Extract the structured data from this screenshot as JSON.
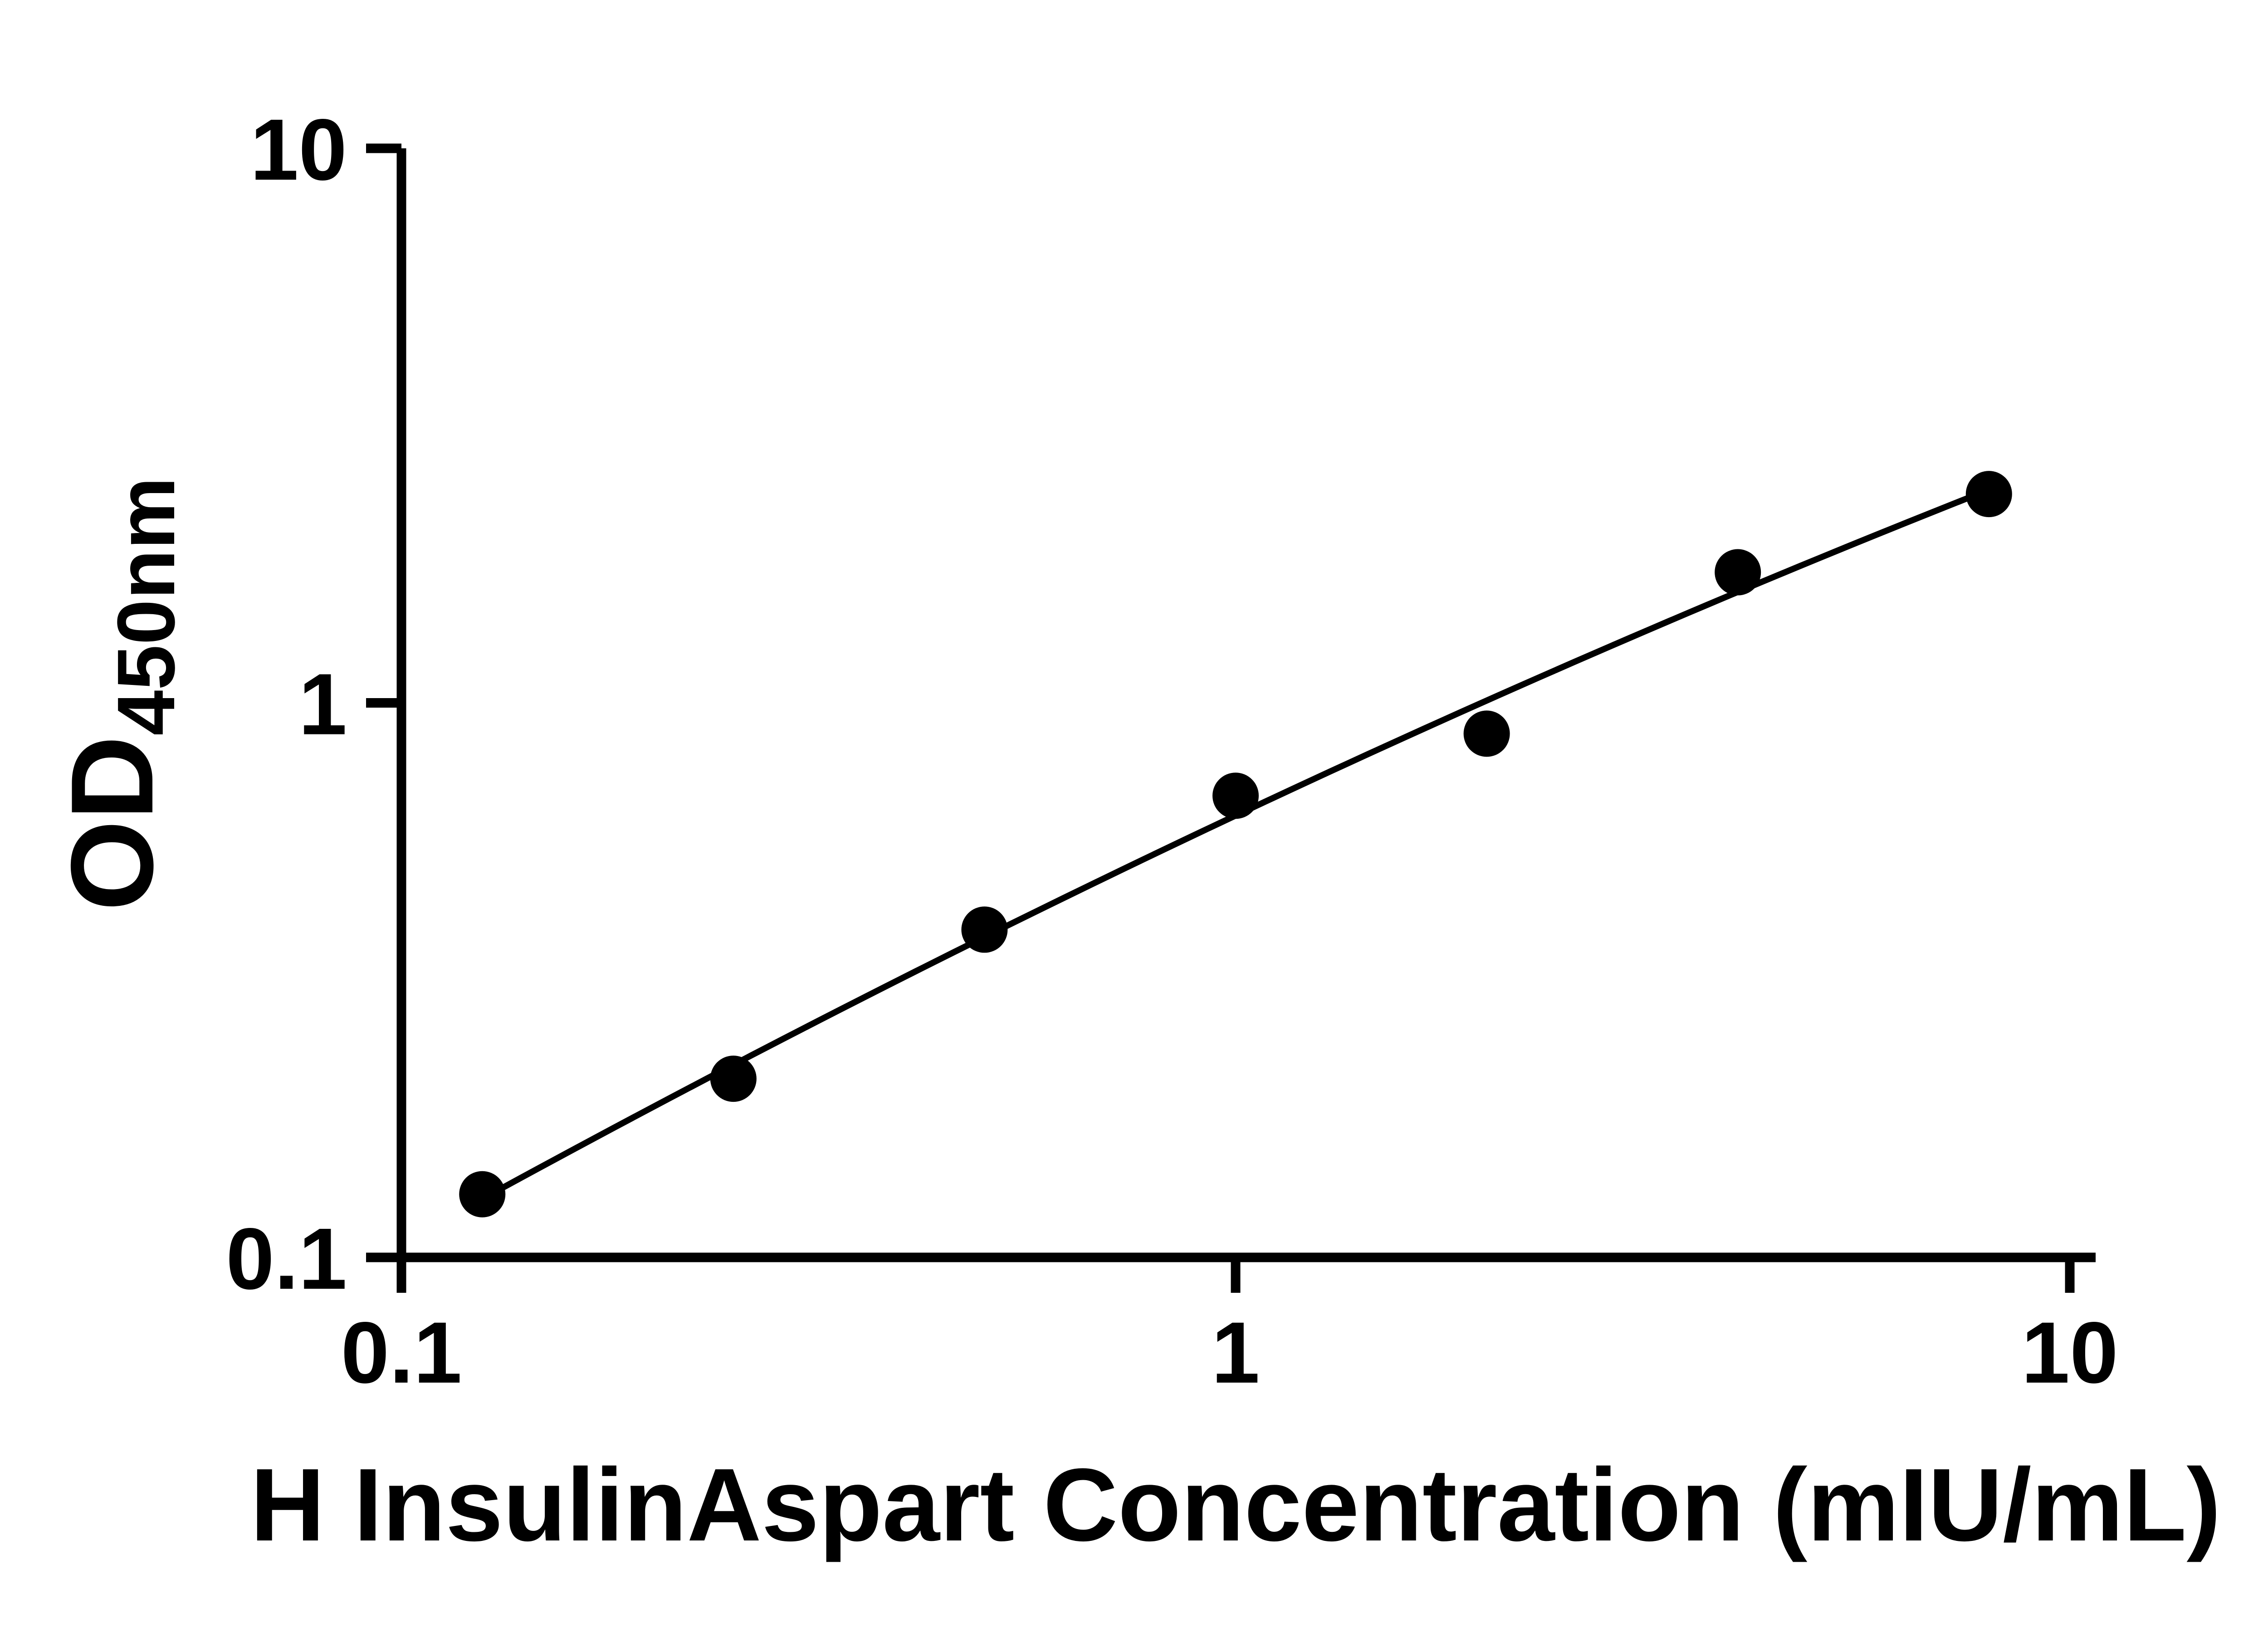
{
  "page": {
    "background_color": "#ffffff"
  },
  "chart_data": {
    "type": "scatter",
    "title": "",
    "xlabel": "H InsulinAspart Concentration (mIU/mL)",
    "ylabel": "OD450nm",
    "ylabel_base": "OD",
    "ylabel_subscript": "450nm",
    "x_scale": "log",
    "y_scale": "log",
    "xlim": [
      0.1,
      10
    ],
    "ylim": [
      0.1,
      10
    ],
    "grid": false,
    "legend": false,
    "axis_color": "#000000",
    "x_ticks": [
      {
        "value": 0.1,
        "label": "0.1"
      },
      {
        "value": 1,
        "label": "1"
      },
      {
        "value": 10,
        "label": "10"
      }
    ],
    "y_ticks": [
      {
        "value": 0.1,
        "label": "0.1"
      },
      {
        "value": 1,
        "label": "1"
      },
      {
        "value": 10,
        "label": "10"
      }
    ],
    "series": [
      {
        "name": "standard-curve",
        "marker": "circle",
        "color": "#000000",
        "fit_line": true,
        "points": [
          {
            "x": 0.125,
            "y": 0.13
          },
          {
            "x": 0.25,
            "y": 0.21
          },
          {
            "x": 0.5,
            "y": 0.39
          },
          {
            "x": 1,
            "y": 0.68
          },
          {
            "x": 2,
            "y": 0.88
          },
          {
            "x": 4,
            "y": 1.72
          },
          {
            "x": 8,
            "y": 2.38
          }
        ]
      }
    ]
  }
}
